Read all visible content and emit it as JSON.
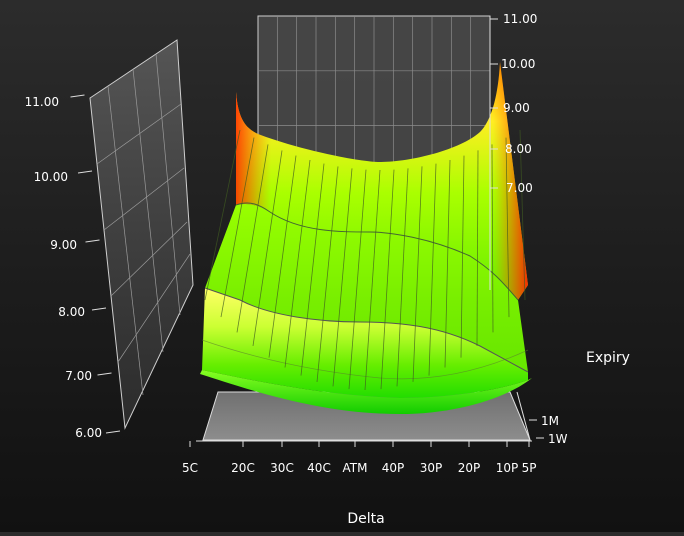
{
  "chart_data": {
    "type": "surface-3d",
    "title": "",
    "xlabel": "Delta",
    "ylabel": "Expiry",
    "zlabel": "",
    "x_categories": [
      "5C",
      "20C",
      "30C",
      "40C",
      "ATM",
      "40P",
      "30P",
      "20P",
      "10P",
      "5P"
    ],
    "y_categories": [
      "1W",
      "1M"
    ],
    "z_ticks": [
      "6.00",
      "7.00",
      "8.00",
      "9.00",
      "10.00",
      "11.00"
    ],
    "z_ticks_back": [
      "11.00",
      "10.00",
      "9.00",
      "8.00",
      "7.00"
    ],
    "zlim": [
      6,
      11
    ],
    "grid": true,
    "colorscale": [
      "#00ee00",
      "#88ff00",
      "#ffff00",
      "#ff9900",
      "#ff2200"
    ],
    "surface_profiles": [
      {
        "depth": "front",
        "values": [
          8.3,
          7.7,
          7.4,
          7.25,
          7.2,
          7.25,
          7.4,
          7.7,
          8.3,
          8.9
        ]
      },
      {
        "depth": "mid",
        "values": [
          9.3,
          8.6,
          8.3,
          8.15,
          8.1,
          8.15,
          8.3,
          8.6,
          9.3,
          9.9
        ]
      },
      {
        "depth": "back",
        "values": [
          10.7,
          10.0,
          9.7,
          9.55,
          9.5,
          9.55,
          9.7,
          10.0,
          10.7,
          11.0
        ]
      }
    ]
  }
}
